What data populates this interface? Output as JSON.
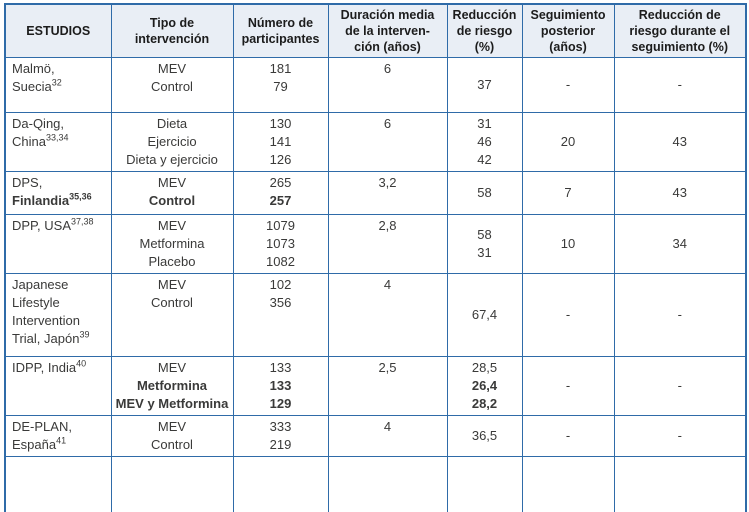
{
  "colors": {
    "border": "#2f6ba8",
    "header_background": "#e9eef5",
    "body_text": "#3a3a39"
  },
  "table": {
    "columns": [
      {
        "label": "ESTUDIOS"
      },
      {
        "label": "Tipo de\nintervención"
      },
      {
        "label": "Número de\nparticipantes"
      },
      {
        "label": "Duración media\nde la interven-\nción (años)"
      },
      {
        "label": "Reducción\nde riesgo\n(%)"
      },
      {
        "label": "Seguimiento\nposterior\n(años)"
      },
      {
        "label": "Reducción de\nriesgo durante el\nseguimiento (%)"
      }
    ],
    "rows": [
      {
        "cells": [
          {
            "align": "left",
            "valign": "top",
            "lines": [
              {
                "t": "Malmö,"
              },
              {
                "t": "Suecia",
                "sup": "32"
              }
            ]
          },
          {
            "valign": "top",
            "lines": [
              {
                "t": "MEV"
              },
              {
                "t": "Control"
              }
            ]
          },
          {
            "valign": "top",
            "lines": [
              {
                "t": "181"
              },
              {
                "t": "79"
              }
            ]
          },
          {
            "valign": "top",
            "lines": [
              {
                "t": "6"
              }
            ]
          },
          {
            "valign": "middle",
            "lines": [
              {
                "t": "37"
              }
            ]
          },
          {
            "valign": "middle",
            "lines": [
              {
                "t": "-"
              }
            ]
          },
          {
            "valign": "middle",
            "lines": [
              {
                "t": "-"
              }
            ]
          }
        ]
      },
      {
        "cells": [
          {
            "align": "left",
            "valign": "top",
            "lines": [
              {
                "t": "Da-Qing,"
              },
              {
                "t": "China",
                "sup": "33,34"
              }
            ]
          },
          {
            "valign": "top",
            "lines": [
              {
                "t": "Dieta"
              },
              {
                "t": "Ejercicio"
              },
              {
                "t": "Dieta y ejercicio"
              }
            ]
          },
          {
            "valign": "top",
            "lines": [
              {
                "t": "130"
              },
              {
                "t": "141"
              },
              {
                "t": "126"
              }
            ]
          },
          {
            "valign": "top",
            "lines": [
              {
                "t": "6"
              }
            ]
          },
          {
            "valign": "top",
            "lines": [
              {
                "t": "31"
              },
              {
                "t": "46"
              },
              {
                "t": "42"
              }
            ]
          },
          {
            "valign": "middle",
            "lines": [
              {
                "t": "20"
              }
            ]
          },
          {
            "valign": "middle",
            "lines": [
              {
                "t": "43"
              }
            ]
          }
        ]
      },
      {
        "cells": [
          {
            "align": "left",
            "valign": "top",
            "lines": [
              {
                "t": "DPS,"
              },
              {
                "t": "Finlandia",
                "sup": "35,36",
                "b": true
              }
            ]
          },
          {
            "valign": "top",
            "lines": [
              {
                "t": "MEV"
              },
              {
                "t": "Control",
                "b": true
              }
            ]
          },
          {
            "valign": "top",
            "lines": [
              {
                "t": "265"
              },
              {
                "t": "257",
                "b": true
              }
            ]
          },
          {
            "valign": "top",
            "lines": [
              {
                "t": "3,2"
              }
            ]
          },
          {
            "valign": "middle",
            "lines": [
              {
                "t": "58"
              }
            ]
          },
          {
            "valign": "middle",
            "lines": [
              {
                "t": "7"
              }
            ]
          },
          {
            "valign": "middle",
            "lines": [
              {
                "t": "43"
              }
            ]
          }
        ]
      },
      {
        "cells": [
          {
            "align": "left",
            "valign": "top",
            "lines": [
              {
                "t": "DPP, USA",
                "sup": "37,38"
              }
            ]
          },
          {
            "valign": "top",
            "lines": [
              {
                "t": "MEV"
              },
              {
                "t": "Metformina"
              },
              {
                "t": "Placebo"
              }
            ]
          },
          {
            "valign": "top",
            "lines": [
              {
                "t": "1079"
              },
              {
                "t": "1073"
              },
              {
                "t": "1082"
              }
            ]
          },
          {
            "valign": "top",
            "lines": [
              {
                "t": "2,8"
              }
            ]
          },
          {
            "valign": "middle",
            "lines": [
              {
                "t": "58"
              },
              {
                "t": "31"
              }
            ]
          },
          {
            "valign": "middle",
            "lines": [
              {
                "t": "10"
              }
            ]
          },
          {
            "valign": "middle",
            "lines": [
              {
                "t": "34"
              }
            ]
          }
        ]
      },
      {
        "cells": [
          {
            "align": "left",
            "valign": "top",
            "lines": [
              {
                "t": "Japanese"
              },
              {
                "t": "Lifestyle"
              },
              {
                "t": "Intervention"
              },
              {
                "t": "Trial, Japón",
                "sup": "39"
              }
            ]
          },
          {
            "valign": "top",
            "lines": [
              {
                "t": "MEV"
              },
              {
                "t": "Control"
              }
            ]
          },
          {
            "valign": "top",
            "lines": [
              {
                "t": "102"
              },
              {
                "t": "356"
              }
            ]
          },
          {
            "valign": "top",
            "lines": [
              {
                "t": "4"
              }
            ]
          },
          {
            "valign": "middle",
            "lines": [
              {
                "t": "67,4"
              }
            ]
          },
          {
            "valign": "middle",
            "lines": [
              {
                "t": "-"
              }
            ]
          },
          {
            "valign": "middle",
            "lines": [
              {
                "t": "-"
              }
            ]
          }
        ]
      },
      {
        "cells": [
          {
            "align": "left",
            "valign": "top",
            "lines": [
              {
                "t": "IDPP, India",
                "sup": "40"
              }
            ]
          },
          {
            "valign": "top",
            "lines": [
              {
                "t": "MEV"
              },
              {
                "t": "Metformina",
                "b": true
              },
              {
                "t": "MEV y Metformina",
                "b": true
              }
            ]
          },
          {
            "valign": "top",
            "lines": [
              {
                "t": "133"
              },
              {
                "t": "133",
                "b": true
              },
              {
                "t": "129",
                "b": true
              }
            ]
          },
          {
            "valign": "top",
            "lines": [
              {
                "t": "2,5"
              }
            ]
          },
          {
            "valign": "top",
            "lines": [
              {
                "t": "28,5"
              },
              {
                "t": "26,4",
                "b": true
              },
              {
                "t": "28,2",
                "b": true
              }
            ]
          },
          {
            "valign": "middle",
            "lines": [
              {
                "t": "-"
              }
            ]
          },
          {
            "valign": "middle",
            "lines": [
              {
                "t": "-"
              }
            ]
          }
        ]
      },
      {
        "cells": [
          {
            "align": "left",
            "valign": "top",
            "lines": [
              {
                "t": "DE-PLAN,"
              },
              {
                "t": "España",
                "sup": "41"
              }
            ]
          },
          {
            "valign": "top",
            "lines": [
              {
                "t": "MEV"
              },
              {
                "t": "Control"
              }
            ]
          },
          {
            "valign": "top",
            "lines": [
              {
                "t": "333"
              },
              {
                "t": "219"
              }
            ]
          },
          {
            "valign": "top",
            "lines": [
              {
                "t": "4"
              }
            ]
          },
          {
            "valign": "middle",
            "lines": [
              {
                "t": "36,5"
              }
            ]
          },
          {
            "valign": "middle",
            "lines": [
              {
                "t": "-"
              }
            ]
          },
          {
            "valign": "middle",
            "lines": [
              {
                "t": "-"
              }
            ]
          }
        ]
      }
    ]
  }
}
